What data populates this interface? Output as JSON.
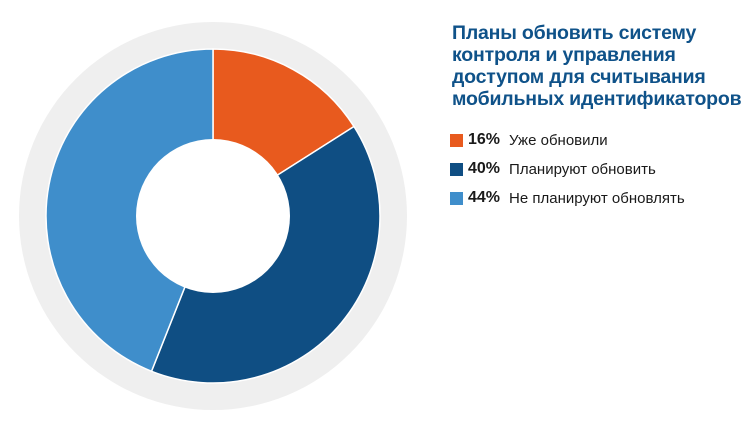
{
  "chart_data": {
    "type": "pie",
    "title_lines": [
      "Планы обновить систему",
      "контроля и управления",
      "доступом для считывания",
      "мобильных идентификаторов"
    ],
    "unit": "%",
    "slices": [
      {
        "label": "Уже обновили",
        "value": 16,
        "value_text": "16%",
        "color": "#e85a1e"
      },
      {
        "label": "Планируют обновить",
        "value": 40,
        "value_text": "40%",
        "color": "#0f4e83"
      },
      {
        "label": "Не планируют обновлять",
        "value": 44,
        "value_text": "44%",
        "color": "#3f8ecb"
      }
    ],
    "donut": true,
    "start_angle": "top",
    "direction": "clockwise",
    "legend_position": "right"
  },
  "colors": {
    "title": "#0f5289",
    "outer_ring": "#efefef",
    "hole": "#ffffff"
  }
}
